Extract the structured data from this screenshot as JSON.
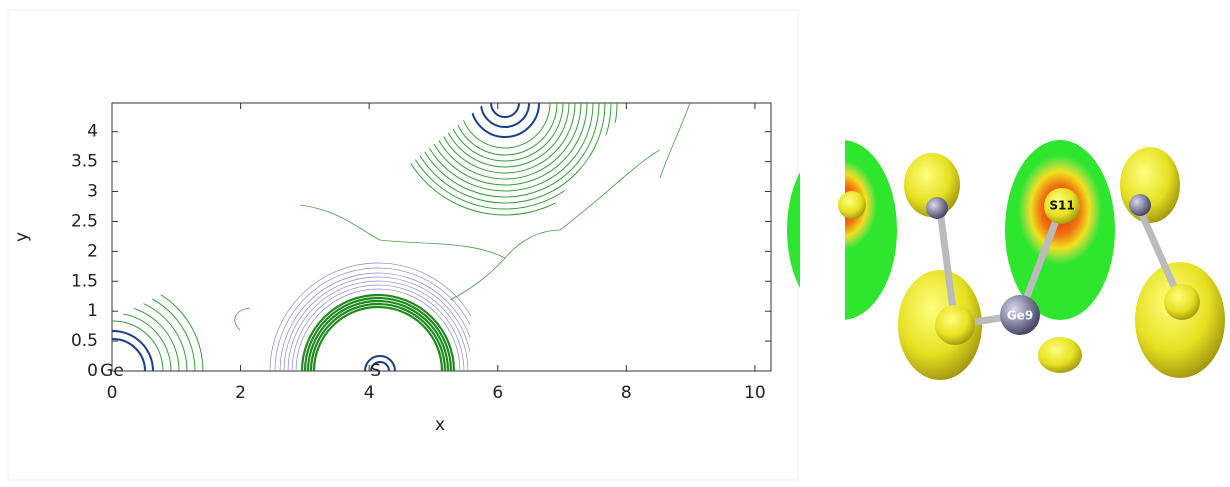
{
  "chart_data": {
    "type": "contour",
    "x_label": "x",
    "y_label": "y",
    "xlim": [
      0,
      10.25
    ],
    "ylim": [
      0,
      4.48
    ],
    "xticks": [
      0,
      2,
      4,
      6,
      8,
      10
    ],
    "yticks": [
      0,
      0.5,
      1,
      1.5,
      2,
      2.5,
      3,
      3.5,
      4
    ],
    "annotations": [
      {
        "text": "Ge",
        "x": 0,
        "y": 0
      },
      {
        "text": "S",
        "x": 4.1,
        "y": 0
      }
    ]
  },
  "image": {
    "atom_labels": [
      "S11",
      "Ge9"
    ]
  }
}
